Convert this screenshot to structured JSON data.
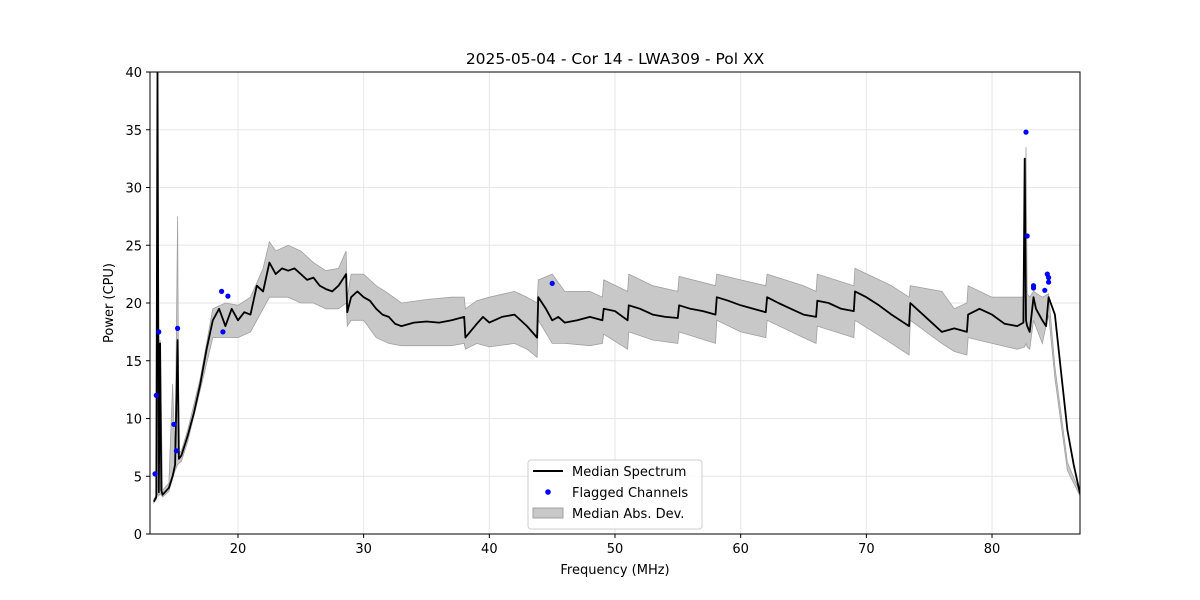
{
  "chart_data": {
    "type": "line",
    "title": "2025-05-04 - Cor 14 - LWA309 - Pol XX",
    "xlabel": "Frequency (MHz)",
    "ylabel": "Power (CPU)",
    "xlim": [
      13.0,
      87.0
    ],
    "ylim": [
      0,
      40
    ],
    "xticks": [
      20,
      30,
      40,
      50,
      60,
      70,
      80
    ],
    "yticks": [
      0,
      5,
      10,
      15,
      20,
      25,
      30,
      35,
      40
    ],
    "grid": true,
    "legend_position": "lower center",
    "colors": {
      "median": "#000000",
      "flagged": "#0000ff",
      "mad_fill": "#c8c8c8",
      "mad_edge": "#a0a0a0",
      "grid": "#e6e6e6"
    },
    "series": [
      {
        "name": "Median Spectrum",
        "x": [
          13.3,
          13.5,
          13.6,
          13.7,
          13.8,
          13.9,
          14.0,
          14.5,
          14.8,
          15.0,
          15.2,
          15.3,
          15.5,
          16.0,
          16.5,
          17.0,
          17.5,
          18.0,
          18.5,
          19.0,
          19.5,
          20.0,
          20.5,
          21.0,
          21.5,
          22.0,
          22.5,
          23.0,
          23.5,
          24.0,
          24.5,
          25.0,
          25.5,
          26.0,
          26.5,
          27.0,
          27.5,
          28.0,
          28.6,
          28.7,
          29.0,
          29.5,
          30.0,
          30.5,
          31.0,
          31.5,
          32.0,
          32.5,
          33.0,
          34.0,
          35.0,
          36.0,
          37.0,
          38.0,
          38.1,
          39.0,
          39.5,
          40.0,
          41.0,
          42.0,
          43.0,
          43.8,
          43.9,
          44.5,
          45.0,
          45.5,
          46.0,
          47.0,
          48.0,
          49.0,
          49.1,
          50.0,
          51.0,
          51.1,
          52.0,
          53.0,
          54.0,
          55.0,
          55.1,
          56.0,
          57.0,
          58.0,
          58.1,
          59.0,
          60.0,
          61.0,
          62.0,
          62.1,
          63.0,
          64.0,
          65.0,
          66.0,
          66.1,
          67.0,
          68.0,
          69.0,
          69.1,
          70.0,
          71.0,
          72.0,
          73.4,
          73.5,
          74.0,
          75.0,
          76.0,
          77.0,
          78.0,
          78.1,
          79.0,
          80.0,
          81.0,
          82.0,
          82.5,
          82.6,
          82.7,
          82.8,
          83.0,
          83.3,
          83.5,
          84.0,
          84.3,
          84.5,
          85.0,
          85.5,
          86.0,
          86.5,
          87.0
        ],
        "y": [
          2.8,
          3.2,
          40.0,
          3.6,
          16.5,
          3.8,
          3.4,
          4.0,
          5.0,
          6.0,
          16.8,
          6.5,
          6.8,
          8.5,
          10.5,
          13.0,
          16.0,
          18.5,
          19.5,
          18.0,
          19.5,
          18.5,
          19.2,
          19.0,
          21.5,
          21.0,
          23.5,
          22.5,
          23.0,
          22.8,
          23.0,
          22.5,
          22.0,
          22.2,
          21.5,
          21.2,
          21.0,
          21.5,
          22.5,
          19.2,
          20.5,
          21.0,
          20.5,
          20.2,
          19.5,
          19.0,
          18.8,
          18.2,
          18.0,
          18.3,
          18.4,
          18.3,
          18.5,
          18.8,
          17.0,
          18.2,
          18.8,
          18.3,
          18.8,
          19.0,
          18.0,
          17.0,
          20.5,
          19.5,
          18.5,
          18.8,
          18.3,
          18.5,
          18.8,
          18.5,
          19.5,
          19.3,
          18.5,
          19.8,
          19.5,
          19.0,
          18.8,
          18.7,
          19.8,
          19.5,
          19.3,
          19.0,
          20.5,
          20.2,
          19.8,
          19.5,
          19.2,
          20.5,
          20.0,
          19.5,
          19.0,
          18.8,
          20.2,
          20.0,
          19.5,
          19.3,
          21.0,
          20.5,
          19.8,
          19.0,
          18.0,
          20.0,
          19.5,
          18.5,
          17.5,
          17.8,
          17.5,
          19.0,
          19.5,
          19.0,
          18.2,
          18.0,
          18.3,
          32.5,
          18.5,
          18.0,
          17.5,
          20.5,
          19.5,
          18.5,
          18.0,
          20.5,
          19.0,
          14.0,
          9.0,
          6.0,
          3.5
        ]
      },
      {
        "name": "Flagged Channels",
        "x": [
          13.4,
          13.5,
          13.7,
          14.9,
          15.1,
          15.2,
          18.7,
          18.8,
          19.2,
          45.0,
          82.7,
          82.8,
          83.3,
          83.3,
          84.2,
          84.4,
          84.5,
          84.5
        ],
        "y": [
          5.2,
          12.0,
          17.5,
          9.5,
          7.2,
          17.8,
          21.0,
          17.5,
          20.6,
          21.7,
          34.8,
          25.8,
          21.5,
          21.3,
          21.1,
          22.5,
          22.2,
          21.8
        ]
      },
      {
        "name": "Median Abs. Dev.",
        "x": [
          13.3,
          13.5,
          13.6,
          13.7,
          13.8,
          14.0,
          14.5,
          14.8,
          15.0,
          15.2,
          15.3,
          15.5,
          16.0,
          17.0,
          18.0,
          19.0,
          20.0,
          21.0,
          22.0,
          22.5,
          23.0,
          24.0,
          25.0,
          26.0,
          27.0,
          28.0,
          28.6,
          28.7,
          29.0,
          30.0,
          31.0,
          32.0,
          33.0,
          35.0,
          37.0,
          38.0,
          38.1,
          39.0,
          40.0,
          42.0,
          43.0,
          43.8,
          43.9,
          45.0,
          46.0,
          48.0,
          49.0,
          49.1,
          51.0,
          51.1,
          53.0,
          55.0,
          55.1,
          58.0,
          58.1,
          60.0,
          62.0,
          62.1,
          65.0,
          66.0,
          66.1,
          69.0,
          69.1,
          72.0,
          73.4,
          73.5,
          76.0,
          77.0,
          78.0,
          78.1,
          80.0,
          82.0,
          82.6,
          82.7,
          82.8,
          83.0,
          83.3,
          84.0,
          84.5,
          85.0,
          86.0,
          87.0
        ],
        "upper": [
          3.0,
          3.4,
          29.0,
          4.0,
          16.8,
          3.8,
          4.4,
          13.0,
          6.5,
          27.5,
          7.0,
          7.2,
          9.0,
          13.5,
          19.5,
          20.0,
          19.8,
          20.5,
          23.0,
          25.3,
          24.5,
          25.0,
          24.5,
          23.5,
          22.8,
          23.0,
          24.5,
          20.5,
          22.5,
          22.5,
          21.5,
          20.8,
          20.0,
          20.3,
          20.5,
          20.5,
          19.5,
          20.2,
          20.5,
          21.0,
          20.5,
          20.0,
          22.0,
          22.5,
          21.0,
          21.0,
          20.5,
          22.0,
          21.0,
          22.5,
          21.5,
          21.0,
          22.3,
          21.5,
          22.5,
          22.0,
          21.5,
          22.5,
          21.5,
          21.0,
          22.5,
          21.5,
          23.0,
          21.5,
          20.5,
          21.5,
          21.0,
          19.5,
          20.0,
          21.5,
          20.5,
          20.5,
          20.5,
          33.5,
          20.8,
          20.5,
          21.0,
          20.5,
          20.8,
          14.5,
          6.2,
          3.6
        ],
        "lower": [
          2.7,
          3.0,
          3.5,
          3.3,
          3.5,
          3.2,
          3.7,
          4.8,
          5.5,
          6.0,
          6.1,
          6.3,
          8.0,
          12.5,
          17.0,
          17.0,
          17.0,
          17.5,
          19.5,
          20.5,
          20.5,
          20.5,
          20.0,
          20.0,
          19.5,
          19.5,
          20.0,
          18.0,
          18.5,
          18.5,
          17.0,
          16.5,
          16.3,
          16.3,
          16.3,
          16.5,
          16.0,
          16.5,
          16.2,
          16.5,
          16.0,
          15.3,
          18.5,
          16.5,
          16.5,
          16.3,
          16.5,
          17.3,
          16.0,
          17.5,
          16.8,
          16.5,
          17.5,
          16.5,
          18.5,
          17.5,
          17.0,
          18.5,
          17.0,
          16.5,
          18.0,
          17.0,
          18.5,
          16.5,
          15.5,
          18.5,
          16.5,
          15.8,
          15.5,
          17.0,
          16.5,
          16.0,
          16.2,
          16.5,
          16.2,
          16.0,
          18.5,
          16.5,
          19.0,
          13.5,
          5.5,
          3.3
        ]
      }
    ]
  }
}
